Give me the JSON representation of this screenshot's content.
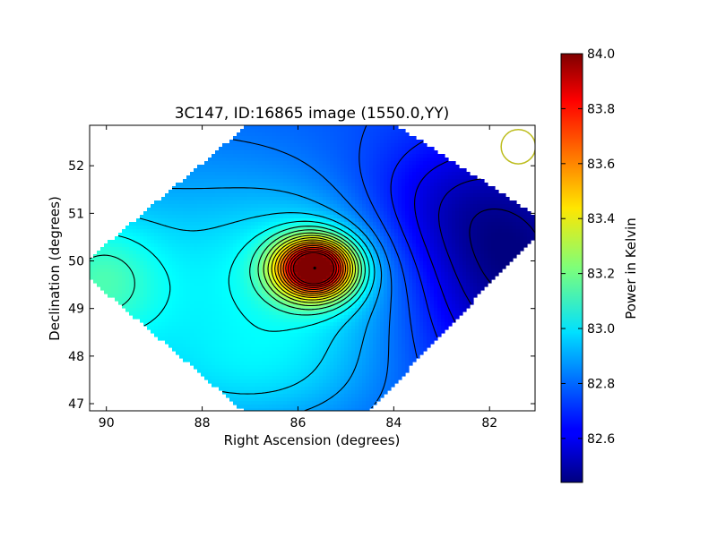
{
  "chart_data": {
    "type": "heatmap",
    "title": "3C147, ID:16865 image (1550.0,YY)",
    "xlabel": "Right Ascension (degrees)",
    "ylabel": "Declination (degrees)",
    "xlim": [
      90.35,
      81.05
    ],
    "ylim": [
      46.85,
      52.85
    ],
    "x_ticks": [
      90,
      88,
      86,
      84,
      82
    ],
    "y_ticks": [
      47,
      48,
      49,
      50,
      51,
      52
    ],
    "x_tick_labels": [
      "90",
      "88",
      "86",
      "84",
      "82"
    ],
    "y_tick_labels": [
      "47",
      "48",
      "49",
      "50",
      "51",
      "52"
    ],
    "grid": false,
    "colormap": "jet",
    "colorbar": {
      "label": "Power in Kelvin",
      "min": 82.44,
      "max": 84.0,
      "ticks": [
        82.6,
        82.8,
        83.0,
        83.2,
        83.4,
        83.6,
        83.8,
        84.0
      ],
      "tick_labels": [
        "82.6",
        "82.8",
        "83.0",
        "83.2",
        "83.4",
        "83.6",
        "83.8",
        "84.0"
      ]
    },
    "footprint_vertices": [
      [
        90.6,
        49.85
      ],
      [
        85.7,
        54.0
      ],
      [
        80.8,
        50.8
      ],
      [
        85.7,
        45.6
      ]
    ],
    "background_level": 82.75,
    "components": [
      {
        "ra": 85.65,
        "dec": 49.85,
        "amp": 1.22,
        "sra": 0.55,
        "sdec": 0.42
      },
      {
        "ra": 85.65,
        "dec": 49.85,
        "amp": 0.18,
        "sra": 1.3,
        "sdec": 1.05
      },
      {
        "ra": 88.6,
        "dec": 49.3,
        "amp": 0.22,
        "sra": 3.0,
        "sdec": 2.2
      },
      {
        "ra": 90.2,
        "dec": 49.6,
        "amp": 0.2,
        "sra": 0.9,
        "sdec": 0.9
      },
      {
        "ra": 86.5,
        "dec": 47.6,
        "amp": 0.1,
        "sra": 1.6,
        "sdec": 0.8
      },
      {
        "ra": 81.5,
        "dec": 49.8,
        "amp": -0.3,
        "sra": 1.5,
        "sdec": 1.7
      },
      {
        "ra": 83.2,
        "dec": 51.2,
        "amp": -0.12,
        "sra": 1.4,
        "sdec": 1.0
      }
    ],
    "contour_step": 0.07,
    "peak": {
      "ra": 85.65,
      "dec": 49.85,
      "value": 84.0
    },
    "beam_marker": {
      "ra": 81.4,
      "dec": 52.4,
      "radius_deg": 0.36,
      "color": "#bdbd1e"
    }
  }
}
